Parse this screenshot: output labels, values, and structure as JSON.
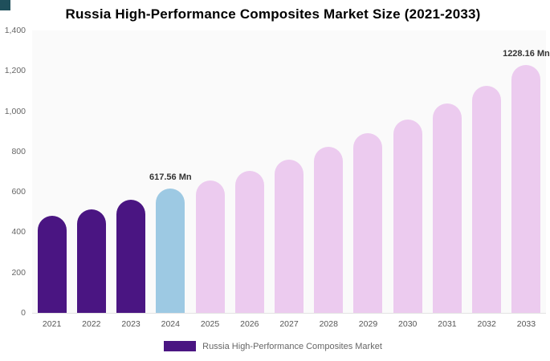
{
  "title": "Russia High-Performance Composites Market Size (2021-2033)",
  "legend": {
    "label": "Russia High-Performance Composites Market"
  },
  "colors": {
    "bar_dark": "#4a1582",
    "bar_highlight": "#9dc9e3",
    "bar_future": "#eccbef",
    "corner_square": "#1f4f5b",
    "legend_swatch": "#4a1582",
    "plot_bg": "#fafafa",
    "axis_text": "#666666",
    "annotation_text": "#333333"
  },
  "chart_data": {
    "type": "bar",
    "title": "Russia High-Performance Composites Market Size (2021-2033)",
    "categories": [
      "2021",
      "2022",
      "2023",
      "2024",
      "2025",
      "2026",
      "2027",
      "2028",
      "2029",
      "2030",
      "2031",
      "2032",
      "2033"
    ],
    "values": [
      480,
      515,
      560,
      617.56,
      655,
      705,
      760,
      825,
      890,
      960,
      1040,
      1125,
      1228.16
    ],
    "bar_roles": [
      "dark",
      "dark",
      "dark",
      "highlight",
      "future",
      "future",
      "future",
      "future",
      "future",
      "future",
      "future",
      "future",
      "future"
    ],
    "annotations": [
      {
        "category": "2024",
        "text": "617.56 Mn"
      },
      {
        "category": "2033",
        "text": "1228.16 Mn"
      }
    ],
    "xlabel": "",
    "ylabel": "",
    "ylim": [
      0,
      1400
    ],
    "yticks": [
      0,
      200,
      400,
      600,
      800,
      1000,
      1200,
      1400
    ],
    "ytick_labels": [
      "0",
      "200",
      "400",
      "600",
      "800",
      "1,000",
      "1,200",
      "1,400"
    ],
    "grid": false,
    "legend_position": "bottom",
    "legend_entries": [
      "Russia High-Performance Composites Market"
    ],
    "unit": "Mn"
  }
}
